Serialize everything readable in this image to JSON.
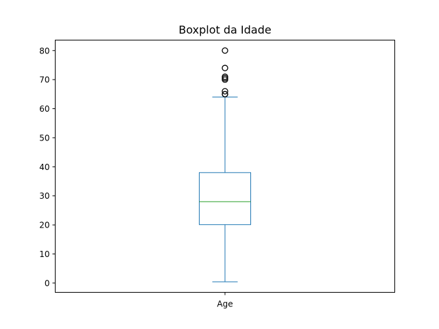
{
  "chart_data": {
    "type": "boxplot",
    "title": "Boxplot da Idade",
    "xlabel": "",
    "ylabel": "",
    "categories": [
      "Age"
    ],
    "ylim": [
      -3.2,
      83.6
    ],
    "y_ticks": [
      0,
      10,
      20,
      30,
      40,
      50,
      60,
      70,
      80
    ],
    "y_tick_labels": [
      "0",
      "10",
      "20",
      "30",
      "40",
      "50",
      "60",
      "70",
      "80"
    ],
    "grid": false,
    "box": {
      "whisker_low": 0.42,
      "q1": 20.1,
      "median": 28.0,
      "q3": 38.0,
      "whisker_high": 64.0,
      "outliers": [
        65.0,
        65.0,
        66.0,
        70.0,
        70.5,
        71.0,
        74.0,
        80.0
      ]
    },
    "colors": {
      "box": "#1f77b4",
      "median": "#2ca02c",
      "outlier": "#000000"
    }
  }
}
